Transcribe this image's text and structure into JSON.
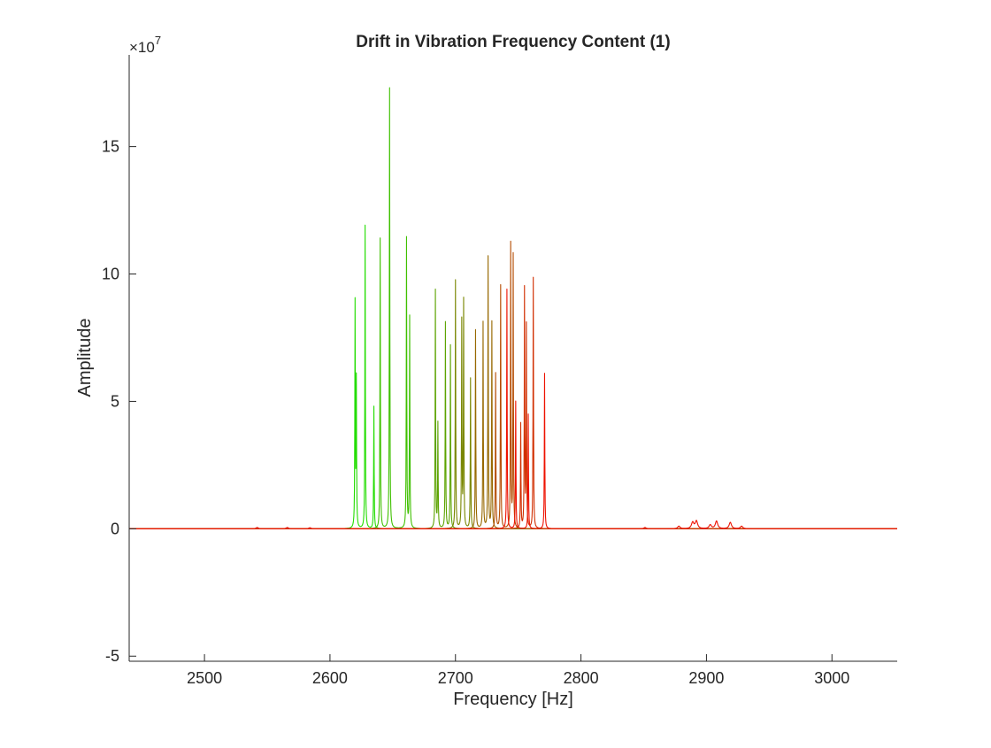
{
  "chart_data": {
    "type": "line",
    "title": "Drift in Vibration Frequency Content (1)",
    "xlabel": "Frequency [Hz]",
    "ylabel": "Amplitude",
    "y_exponent": {
      "base": "×10",
      "power": "7"
    },
    "xlim": [
      2440,
      3052
    ],
    "ylim": [
      -5.2,
      18.6
    ],
    "x_ticks": [
      2500,
      2600,
      2700,
      2800,
      2900,
      3000
    ],
    "y_ticks": [
      -5,
      0,
      5,
      10,
      15
    ],
    "grid": false,
    "legend": "none",
    "colors": {
      "start": "#22dd00",
      "end": "#ee1100",
      "axis": "#262626"
    },
    "series": [
      {
        "peaks": [
          [
            2620,
            8.8
          ],
          [
            2621,
            5.7
          ],
          [
            2628,
            11.9
          ],
          [
            2635,
            4.8
          ]
        ]
      },
      {
        "peaks": [
          [
            2640,
            11.4
          ],
          [
            2647.5,
            17.3
          ],
          [
            2661,
            11.4
          ],
          [
            2663.5,
            8.3
          ]
        ]
      },
      {
        "peaks": [
          [
            2684,
            9.35
          ],
          [
            2686,
            4.1
          ],
          [
            2692,
            8.1
          ],
          [
            2696,
            7.2
          ]
        ]
      },
      {
        "peaks": [
          [
            2700,
            9.75
          ],
          [
            2705,
            8.1
          ],
          [
            2706.5,
            8.9
          ],
          [
            2712,
            5.9
          ]
        ]
      },
      {
        "peaks": [
          [
            2716,
            7.8
          ],
          [
            2722,
            8.1
          ],
          [
            2726,
            10.65
          ],
          [
            2729,
            8.1
          ]
        ]
      },
      {
        "peaks": [
          [
            2732,
            6.1
          ],
          [
            2736,
            9.55
          ],
          [
            2744,
            11.15
          ],
          [
            2746,
            10.7
          ]
        ]
      },
      {
        "peaks": [
          [
            2752,
            4.1
          ],
          [
            2755,
            9.35
          ],
          [
            2756.5,
            7.9
          ],
          [
            2762,
            9.85
          ]
        ]
      },
      {
        "peaks": [
          [
            2771,
            6.1
          ],
          [
            2748,
            5.0
          ],
          [
            2741,
            9.4
          ],
          [
            2758,
            4.5
          ]
        ]
      }
    ],
    "minor_bumps": [
      [
        2542,
        0.05
      ],
      [
        2566,
        0.05
      ],
      [
        2584,
        0.04
      ],
      [
        2851,
        0.05
      ],
      [
        2878,
        0.1
      ],
      [
        2889,
        0.25
      ],
      [
        2892,
        0.3
      ],
      [
        2903,
        0.15
      ],
      [
        2908,
        0.3
      ],
      [
        2919,
        0.25
      ],
      [
        2928,
        0.1
      ]
    ]
  }
}
